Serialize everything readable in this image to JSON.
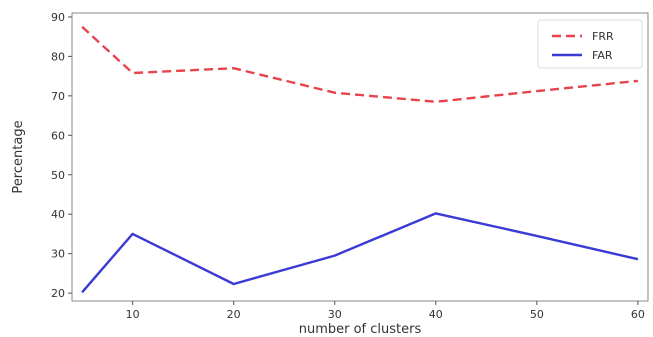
{
  "chart_data": {
    "type": "line",
    "title": "",
    "xlabel": "number of clusters",
    "ylabel": "Percentage",
    "xlim": [
      4,
      61
    ],
    "ylim": [
      18,
      91
    ],
    "xticks": [
      10,
      20,
      30,
      40,
      50,
      60
    ],
    "yticks": [
      20,
      30,
      40,
      50,
      60,
      70,
      80,
      90
    ],
    "grid": false,
    "legend_position": "top-right",
    "series": [
      {
        "name": "FRR",
        "color": "#e8434d",
        "style": "dashed",
        "x": [
          5,
          10,
          20,
          30,
          40,
          50,
          60
        ],
        "y": [
          87.5,
          75.8,
          77.0,
          70.8,
          68.5,
          71.2,
          73.8
        ]
      },
      {
        "name": "FAR",
        "color": "#3a3ad6",
        "style": "solid",
        "x": [
          5,
          10,
          20,
          30,
          40,
          50,
          60
        ],
        "y": [
          20.2,
          35.0,
          22.3,
          29.5,
          40.2,
          34.5,
          28.6
        ]
      }
    ]
  }
}
